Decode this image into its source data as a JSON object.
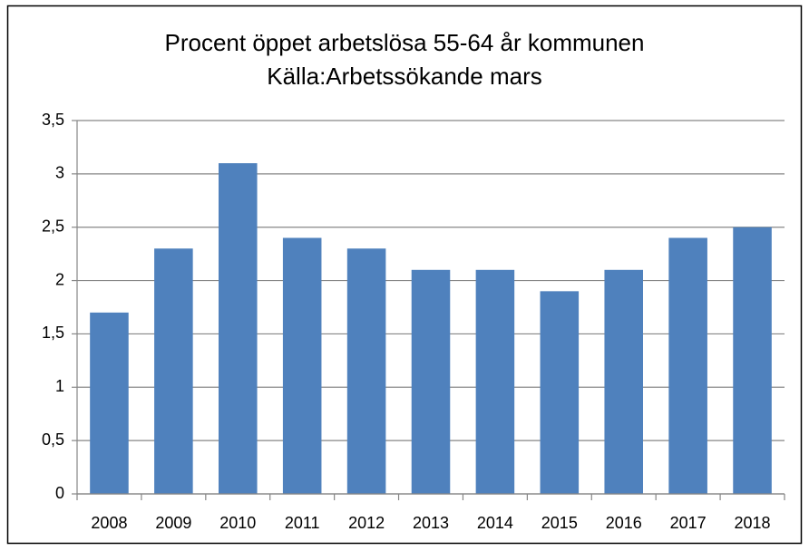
{
  "chart_data": {
    "type": "bar",
    "title": "Procent öppet arbetslösa 55-64 år kommunen",
    "subtitle": "Källa:Arbetssökande mars",
    "categories": [
      "2008",
      "2009",
      "2010",
      "2011",
      "2012",
      "2013",
      "2014",
      "2015",
      "2016",
      "2017",
      "2018"
    ],
    "values": [
      1.7,
      2.3,
      3.1,
      2.4,
      2.3,
      2.1,
      2.1,
      1.9,
      2.1,
      2.4,
      2.5
    ],
    "color": "#4f81bd",
    "ylim": [
      0,
      3.5
    ],
    "yticks": [
      0,
      {
        "value": 0.5,
        "label": "0,5"
      },
      1,
      {
        "value": 1.5,
        "label": "1,5"
      },
      2,
      {
        "value": 2.5,
        "label": "2,5"
      },
      3,
      {
        "value": 3.5,
        "label": "3,5"
      }
    ],
    "grid": true
  }
}
